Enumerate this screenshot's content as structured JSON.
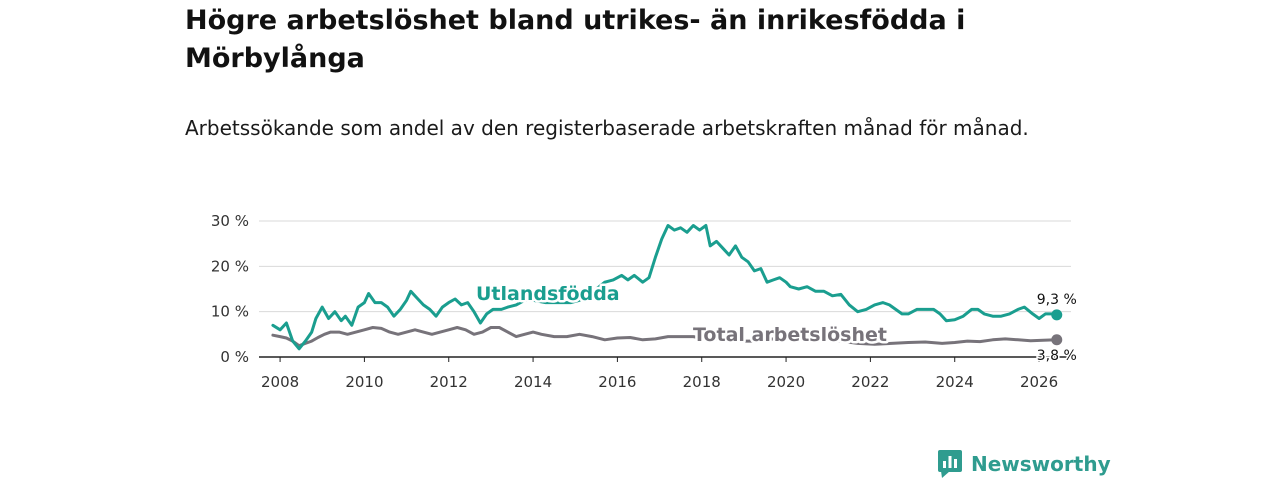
{
  "title": "Högre arbetslöshet bland utrikes- än inrikesfödda i Mörbylånga",
  "subtitle": "Arbetssökande som andel av den registerbaserade arbetskraften månad för månad.",
  "brand": "Newsworthy",
  "colors": {
    "foreign": "#1a9e8f",
    "total": "#77737a",
    "grid": "#d9d9d9",
    "axis": "#222222",
    "brand": "#2f9c8f"
  },
  "chart_data": {
    "type": "line",
    "title": "Högre arbetslöshet bland utrikes- än inrikesfödda i Mörbylånga",
    "xlabel": "",
    "ylabel": "",
    "xlim": [
      2007.5,
      2026.9
    ],
    "ylim": [
      0,
      30
    ],
    "xticks": [
      2008,
      2010,
      2012,
      2014,
      2016,
      2018,
      2020,
      2022,
      2024,
      2026
    ],
    "xtick_labels": [
      "2008",
      "2010",
      "2012",
      "2014",
      "2016",
      "2018",
      "2020",
      "2022",
      "2024",
      "2026"
    ],
    "yticks": [
      0,
      10,
      20,
      30
    ],
    "ytick_labels": [
      "0 %",
      "10 %",
      "20 %",
      "30 %"
    ],
    "grid": true,
    "series": [
      {
        "name": "Utlandsfödda",
        "label": "Utlandsfödda",
        "color": "#1a9e8f",
        "end_label": "9,3 %",
        "points": [
          [
            2007.83,
            7.0
          ],
          [
            2008.0,
            6.0
          ],
          [
            2008.15,
            7.5
          ],
          [
            2008.3,
            3.5
          ],
          [
            2008.45,
            1.8
          ],
          [
            2008.6,
            3.5
          ],
          [
            2008.75,
            5.5
          ],
          [
            2008.85,
            8.5
          ],
          [
            2009.0,
            11.0
          ],
          [
            2009.15,
            8.5
          ],
          [
            2009.3,
            10.0
          ],
          [
            2009.45,
            8.0
          ],
          [
            2009.55,
            9.0
          ],
          [
            2009.7,
            7.0
          ],
          [
            2009.85,
            11.0
          ],
          [
            2010.0,
            12.0
          ],
          [
            2010.1,
            14.0
          ],
          [
            2010.25,
            12.0
          ],
          [
            2010.4,
            12.0
          ],
          [
            2010.55,
            11.0
          ],
          [
            2010.7,
            9.0
          ],
          [
            2010.85,
            10.5
          ],
          [
            2011.0,
            12.5
          ],
          [
            2011.1,
            14.5
          ],
          [
            2011.25,
            13.0
          ],
          [
            2011.4,
            11.5
          ],
          [
            2011.55,
            10.5
          ],
          [
            2011.7,
            9.0
          ],
          [
            2011.85,
            11.0
          ],
          [
            2012.0,
            12.0
          ],
          [
            2012.15,
            12.8
          ],
          [
            2012.3,
            11.5
          ],
          [
            2012.45,
            12.0
          ],
          [
            2012.6,
            10.0
          ],
          [
            2012.75,
            7.5
          ],
          [
            2012.9,
            9.5
          ],
          [
            2013.05,
            10.5
          ],
          [
            2013.25,
            10.5
          ],
          [
            2013.4,
            11.0
          ],
          [
            2013.6,
            11.5
          ],
          [
            2013.8,
            12.5
          ],
          [
            2014.0,
            12.5
          ],
          [
            2014.3,
            12.0
          ],
          [
            2014.6,
            12.0
          ],
          [
            2014.9,
            12.0
          ],
          [
            2015.1,
            12.5
          ],
          [
            2015.3,
            14.0
          ],
          [
            2015.5,
            15.0
          ],
          [
            2015.7,
            16.5
          ],
          [
            2015.9,
            17.0
          ],
          [
            2016.1,
            18.0
          ],
          [
            2016.25,
            17.0
          ],
          [
            2016.4,
            18.0
          ],
          [
            2016.6,
            16.5
          ],
          [
            2016.75,
            17.5
          ],
          [
            2016.9,
            22.0
          ],
          [
            2017.05,
            26.0
          ],
          [
            2017.2,
            29.0
          ],
          [
            2017.35,
            28.0
          ],
          [
            2017.5,
            28.5
          ],
          [
            2017.65,
            27.5
          ],
          [
            2017.8,
            29.0
          ],
          [
            2017.95,
            28.0
          ],
          [
            2018.1,
            29.0
          ],
          [
            2018.2,
            24.5
          ],
          [
            2018.35,
            25.5
          ],
          [
            2018.5,
            24.0
          ],
          [
            2018.65,
            22.5
          ],
          [
            2018.8,
            24.5
          ],
          [
            2018.95,
            22.0
          ],
          [
            2019.1,
            21.0
          ],
          [
            2019.25,
            19.0
          ],
          [
            2019.4,
            19.5
          ],
          [
            2019.55,
            16.5
          ],
          [
            2019.7,
            17.0
          ],
          [
            2019.85,
            17.5
          ],
          [
            2020.0,
            16.5
          ],
          [
            2020.1,
            15.5
          ],
          [
            2020.3,
            15.0
          ],
          [
            2020.5,
            15.5
          ],
          [
            2020.7,
            14.5
          ],
          [
            2020.9,
            14.5
          ],
          [
            2021.1,
            13.5
          ],
          [
            2021.3,
            13.8
          ],
          [
            2021.5,
            11.5
          ],
          [
            2021.7,
            10.0
          ],
          [
            2021.9,
            10.5
          ],
          [
            2022.1,
            11.5
          ],
          [
            2022.3,
            12.0
          ],
          [
            2022.45,
            11.5
          ],
          [
            2022.6,
            10.5
          ],
          [
            2022.75,
            9.5
          ],
          [
            2022.9,
            9.5
          ],
          [
            2023.1,
            10.5
          ],
          [
            2023.3,
            10.5
          ],
          [
            2023.5,
            10.5
          ],
          [
            2023.65,
            9.5
          ],
          [
            2023.8,
            8.0
          ],
          [
            2024.0,
            8.2
          ],
          [
            2024.2,
            9.0
          ],
          [
            2024.4,
            10.5
          ],
          [
            2024.55,
            10.5
          ],
          [
            2024.7,
            9.5
          ],
          [
            2024.9,
            9.0
          ],
          [
            2025.1,
            9.0
          ],
          [
            2025.3,
            9.5
          ],
          [
            2025.5,
            10.5
          ],
          [
            2025.65,
            11.0
          ],
          [
            2025.85,
            9.5
          ],
          [
            2026.0,
            8.5
          ],
          [
            2026.15,
            9.5
          ],
          [
            2026.3,
            9.5
          ],
          [
            2026.42,
            9.3
          ]
        ]
      },
      {
        "name": "Total arbetslöshet",
        "label": "Total arbetslöshet",
        "color": "#77737a",
        "end_label": "3,8 %",
        "points": [
          [
            2007.83,
            4.8
          ],
          [
            2008.0,
            4.5
          ],
          [
            2008.15,
            4.2
          ],
          [
            2008.3,
            3.5
          ],
          [
            2008.45,
            2.5
          ],
          [
            2008.6,
            3.0
          ],
          [
            2008.75,
            3.5
          ],
          [
            2008.9,
            4.3
          ],
          [
            2009.05,
            5.0
          ],
          [
            2009.2,
            5.5
          ],
          [
            2009.4,
            5.5
          ],
          [
            2009.6,
            5.0
          ],
          [
            2009.8,
            5.5
          ],
          [
            2010.0,
            6.0
          ],
          [
            2010.2,
            6.5
          ],
          [
            2010.4,
            6.3
          ],
          [
            2010.6,
            5.5
          ],
          [
            2010.8,
            5.0
          ],
          [
            2011.0,
            5.5
          ],
          [
            2011.2,
            6.0
          ],
          [
            2011.4,
            5.5
          ],
          [
            2011.6,
            5.0
          ],
          [
            2011.8,
            5.5
          ],
          [
            2012.0,
            6.0
          ],
          [
            2012.2,
            6.5
          ],
          [
            2012.4,
            6.0
          ],
          [
            2012.6,
            5.0
          ],
          [
            2012.8,
            5.5
          ],
          [
            2013.0,
            6.5
          ],
          [
            2013.2,
            6.5
          ],
          [
            2013.4,
            5.5
          ],
          [
            2013.6,
            4.5
          ],
          [
            2013.8,
            5.0
          ],
          [
            2014.0,
            5.5
          ],
          [
            2014.2,
            5.0
          ],
          [
            2014.5,
            4.5
          ],
          [
            2014.8,
            4.5
          ],
          [
            2015.1,
            5.0
          ],
          [
            2015.4,
            4.5
          ],
          [
            2015.7,
            3.8
          ],
          [
            2016.0,
            4.2
          ],
          [
            2016.3,
            4.3
          ],
          [
            2016.6,
            3.8
          ],
          [
            2016.9,
            4.0
          ],
          [
            2017.2,
            4.5
          ],
          [
            2017.5,
            4.5
          ],
          [
            2017.8,
            4.5
          ],
          [
            2018.1,
            4.0
          ],
          [
            2018.5,
            3.8
          ],
          [
            2018.9,
            3.5
          ],
          [
            2019.3,
            3.5
          ],
          [
            2019.7,
            4.0
          ],
          [
            2020.1,
            4.2
          ],
          [
            2020.5,
            4.5
          ],
          [
            2020.9,
            4.0
          ],
          [
            2021.3,
            3.5
          ],
          [
            2021.7,
            3.0
          ],
          [
            2022.1,
            2.8
          ],
          [
            2022.5,
            3.0
          ],
          [
            2022.9,
            3.2
          ],
          [
            2023.3,
            3.3
          ],
          [
            2023.7,
            3.0
          ],
          [
            2024.0,
            3.2
          ],
          [
            2024.3,
            3.5
          ],
          [
            2024.6,
            3.4
          ],
          [
            2024.9,
            3.8
          ],
          [
            2025.2,
            4.0
          ],
          [
            2025.5,
            3.8
          ],
          [
            2025.8,
            3.6
          ],
          [
            2026.1,
            3.7
          ],
          [
            2026.42,
            3.8
          ]
        ]
      }
    ]
  }
}
